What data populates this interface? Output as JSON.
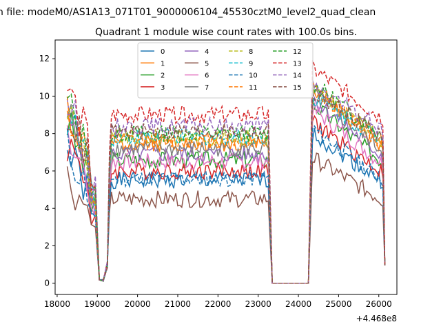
{
  "suptitle": "n file: modeM0/AS1A13_071T01_9000006104_45530cztM0_level2_quad_clean",
  "chart_data": {
    "type": "line",
    "title": "Quadrant 1 module wise count rates with 100.0s bins.",
    "xlabel": "",
    "ylabel": "",
    "x_offset_label": "+4.468e8",
    "xlim": [
      17950,
      26450
    ],
    "ylim": [
      -0.6,
      13.0
    ],
    "xticks": [
      "18000",
      "19000",
      "20000",
      "21000",
      "22000",
      "23000",
      "24000",
      "25000",
      "26000"
    ],
    "xtick_values": [
      18000,
      19000,
      20000,
      21000,
      22000,
      23000,
      24000,
      25000,
      26000
    ],
    "yticks": [
      "0",
      "2",
      "4",
      "6",
      "8",
      "10",
      "12"
    ],
    "ytick_values": [
      0,
      2,
      4,
      6,
      8,
      10,
      12
    ],
    "grid": false,
    "legend_position": "upper-center",
    "legend_columns": 4,
    "segments": [
      {
        "x_start": 18250,
        "x_end": 18950,
        "step": 100,
        "phase": "decline"
      },
      {
        "x_start": 19050,
        "x_end": 19150,
        "step": 100,
        "phase": "low"
      },
      {
        "x_start": 19250,
        "x_end": 23250,
        "step": 50,
        "phase": "plateau"
      },
      {
        "x_start": 23350,
        "x_end": 24250,
        "step": 100,
        "phase": "zero"
      },
      {
        "x_start": 24350,
        "x_end": 26150,
        "step": 50,
        "phase": "decline"
      }
    ],
    "series": [
      {
        "name": "0",
        "color": "#1f77b4",
        "dash": false,
        "level": 5.5,
        "start": 7.0,
        "seed": 1
      },
      {
        "name": "1",
        "color": "#ff7f0e",
        "dash": false,
        "level": 7.5,
        "start": 9.5,
        "seed": 2
      },
      {
        "name": "2",
        "color": "#2ca02c",
        "dash": false,
        "level": 6.6,
        "start": 8.6,
        "seed": 3
      },
      {
        "name": "3",
        "color": "#d62728",
        "dash": false,
        "level": 6.0,
        "start": 7.6,
        "seed": 4
      },
      {
        "name": "4",
        "color": "#9467bd",
        "dash": false,
        "level": 6.9,
        "start": 8.9,
        "seed": 5
      },
      {
        "name": "5",
        "color": "#8c564b",
        "dash": false,
        "level": 4.5,
        "start": 5.7,
        "seed": 6
      },
      {
        "name": "6",
        "color": "#e377c2",
        "dash": false,
        "level": 6.5,
        "start": 8.3,
        "seed": 7
      },
      {
        "name": "7",
        "color": "#7f7f7f",
        "dash": false,
        "level": 7.2,
        "start": 9.1,
        "seed": 8
      },
      {
        "name": "8",
        "color": "#bcbd22",
        "dash": true,
        "level": 7.8,
        "start": 9.4,
        "seed": 9
      },
      {
        "name": "9",
        "color": "#17becf",
        "dash": true,
        "level": 7.8,
        "start": 9.0,
        "seed": 10
      },
      {
        "name": "10",
        "color": "#1f77b4",
        "dash": true,
        "level": 5.6,
        "start": 7.3,
        "seed": 11
      },
      {
        "name": "11",
        "color": "#ff7f0e",
        "dash": true,
        "level": 7.6,
        "start": 9.4,
        "seed": 12
      },
      {
        "name": "12",
        "color": "#2ca02c",
        "dash": true,
        "level": 8.0,
        "start": 9.7,
        "seed": 13
      },
      {
        "name": "13",
        "color": "#d62728",
        "dash": true,
        "level": 9.0,
        "start": 10.5,
        "seed": 14
      },
      {
        "name": "14",
        "color": "#9467bd",
        "dash": true,
        "level": 8.4,
        "start": 9.6,
        "seed": 15
      },
      {
        "name": "15",
        "color": "#8c564b",
        "dash": true,
        "level": 8.1,
        "start": 9.2,
        "seed": 16
      }
    ]
  }
}
